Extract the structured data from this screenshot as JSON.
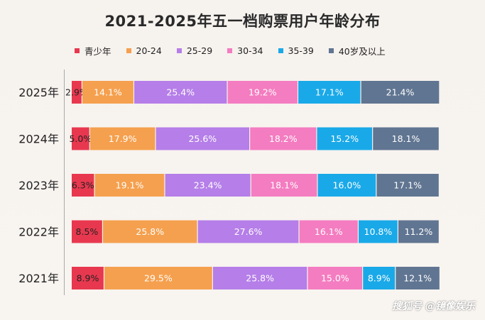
{
  "title": "2021-2025年五一档购票用户年龄分布",
  "legend": [
    {
      "label": "青少年",
      "color": "#e8384f"
    },
    {
      "label": "20-24",
      "color": "#f5a04e"
    },
    {
      "label": "25-29",
      "color": "#b57ee8"
    },
    {
      "label": "30-34",
      "color": "#f47cc0"
    },
    {
      "label": "35-39",
      "color": "#1aa9e8"
    },
    {
      "label": "40岁及以上",
      "color": "#607591"
    }
  ],
  "watermark": "搜狐号 @镜像娱乐",
  "chart_data": {
    "type": "bar",
    "orientation": "horizontal",
    "stacked": true,
    "title": "2021-2025年五一档购票用户年龄分布",
    "categories": [
      "2025年",
      "2024年",
      "2023年",
      "2022年",
      "2021年"
    ],
    "series": [
      {
        "name": "青少年",
        "color": "#e8384f",
        "values": [
          2.9,
          5.0,
          6.3,
          8.5,
          8.9
        ],
        "labels": [
          "2.9%",
          "5.0%",
          "6.3%",
          "8.5%",
          "8.9%"
        ]
      },
      {
        "name": "20-24",
        "color": "#f5a04e",
        "values": [
          14.1,
          17.9,
          19.1,
          25.8,
          29.5
        ],
        "labels": [
          "14.1%",
          "17.9%",
          "19.1%",
          "25.8%",
          "29.5%"
        ]
      },
      {
        "name": "25-29",
        "color": "#b57ee8",
        "values": [
          25.4,
          25.6,
          23.4,
          27.6,
          25.8
        ],
        "labels": [
          "25.4%",
          "25.6%",
          "23.4%",
          "27.6%",
          "25.8%"
        ]
      },
      {
        "name": "30-34",
        "color": "#f47cc0",
        "values": [
          19.2,
          18.2,
          18.1,
          16.1,
          15.0
        ],
        "labels": [
          "19.2%",
          "18.2%",
          "18.1%",
          "16.1%",
          "15.0%"
        ]
      },
      {
        "name": "35-39",
        "color": "#1aa9e8",
        "values": [
          17.1,
          15.2,
          16.0,
          10.8,
          8.9
        ],
        "labels": [
          "17.1%",
          "15.2%",
          "16.0%",
          "10.8%",
          "8.9%"
        ]
      },
      {
        "name": "40岁及以上",
        "color": "#607591",
        "values": [
          21.4,
          18.1,
          17.1,
          11.2,
          12.1
        ],
        "labels": [
          "21.4%",
          "18.1%",
          "17.1%",
          "11.2%",
          "12.1%"
        ]
      }
    ],
    "xlim": [
      0,
      100
    ],
    "grid": false,
    "legend_position": "top"
  }
}
